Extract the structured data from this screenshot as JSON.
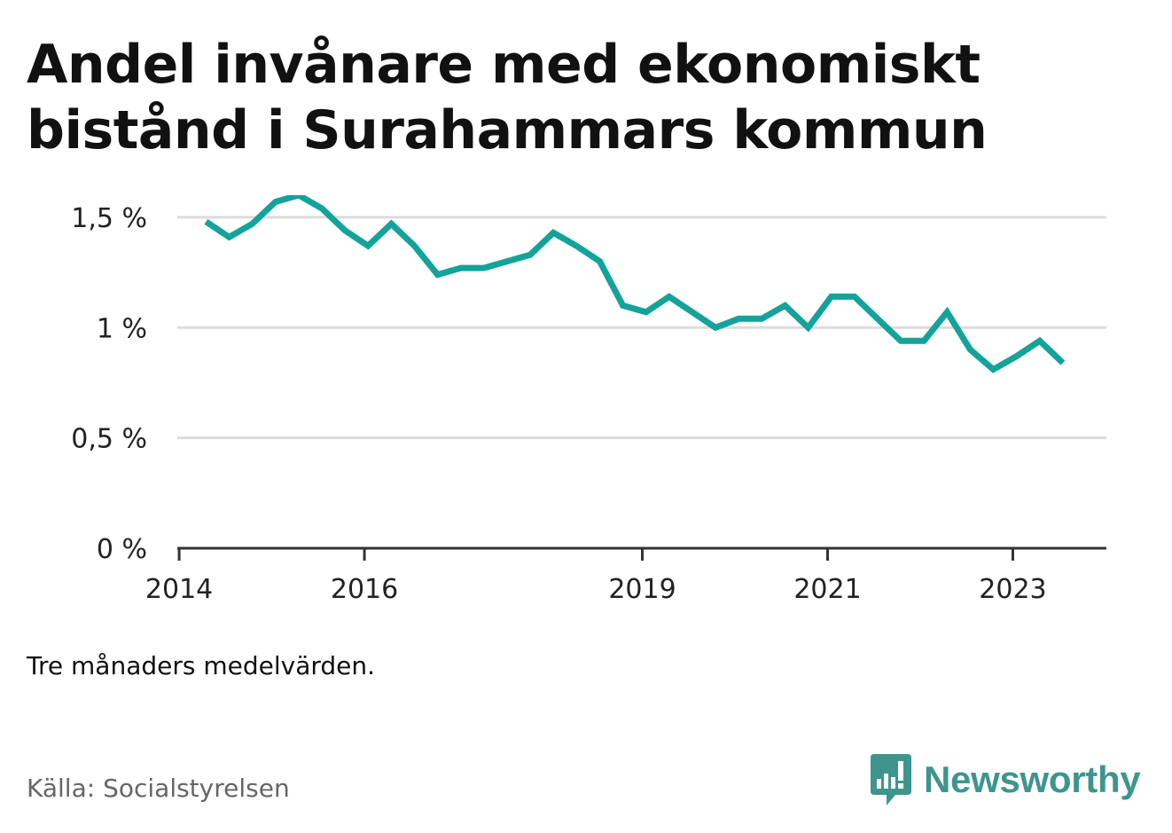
{
  "title": "Andel invånare med ekonomiskt bistånd i Surahammars kommun",
  "note": "Tre månaders medelvärden.",
  "source": "Källa: Socialstyrelsen",
  "brand": {
    "name": "Newsworthy",
    "icon": "bar-chart-speech-bubble-icon",
    "color": "#3e958e"
  },
  "chart_data": {
    "type": "line",
    "title": "Andel invånare med ekonomiskt bistånd i Surahammars kommun",
    "xlabel": "",
    "ylabel": "",
    "color": "#14a39a",
    "grid": true,
    "ylim": [
      0,
      1.6
    ],
    "xlim": [
      2013.98,
      2024.01
    ],
    "y_ticks": [
      {
        "value": 0,
        "label": "0 %"
      },
      {
        "value": 0.5,
        "label": "0,5 %"
      },
      {
        "value": 1,
        "label": "1 %"
      },
      {
        "value": 1.5,
        "label": "1,5 %"
      }
    ],
    "x_ticks": [
      {
        "value": 2014,
        "label": "2014"
      },
      {
        "value": 2016,
        "label": "2016"
      },
      {
        "value": 2019,
        "label": "2019"
      },
      {
        "value": 2021,
        "label": "2021"
      },
      {
        "value": 2023,
        "label": "2023"
      }
    ],
    "x": [
      2014.29,
      2014.54,
      2014.79,
      2015.04,
      2015.29,
      2015.54,
      2015.79,
      2016.04,
      2016.29,
      2016.54,
      2016.79,
      2017.04,
      2017.29,
      2017.54,
      2017.79,
      2018.04,
      2018.29,
      2018.54,
      2018.79,
      2019.04,
      2019.29,
      2019.54,
      2019.79,
      2020.04,
      2020.29,
      2020.54,
      2020.79,
      2021.04,
      2021.29,
      2021.54,
      2021.79,
      2022.04,
      2022.29,
      2022.54,
      2022.79,
      2023.04,
      2023.29,
      2023.54
    ],
    "y": [
      1.48,
      1.41,
      1.47,
      1.57,
      1.6,
      1.54,
      1.44,
      1.37,
      1.47,
      1.37,
      1.24,
      1.27,
      1.27,
      1.3,
      1.33,
      1.43,
      1.37,
      1.3,
      1.1,
      1.07,
      1.14,
      1.07,
      1.0,
      1.04,
      1.04,
      1.1,
      1.0,
      1.14,
      1.14,
      1.04,
      0.94,
      0.94,
      1.07,
      0.9,
      0.81,
      0.87,
      0.94,
      0.84
    ]
  }
}
